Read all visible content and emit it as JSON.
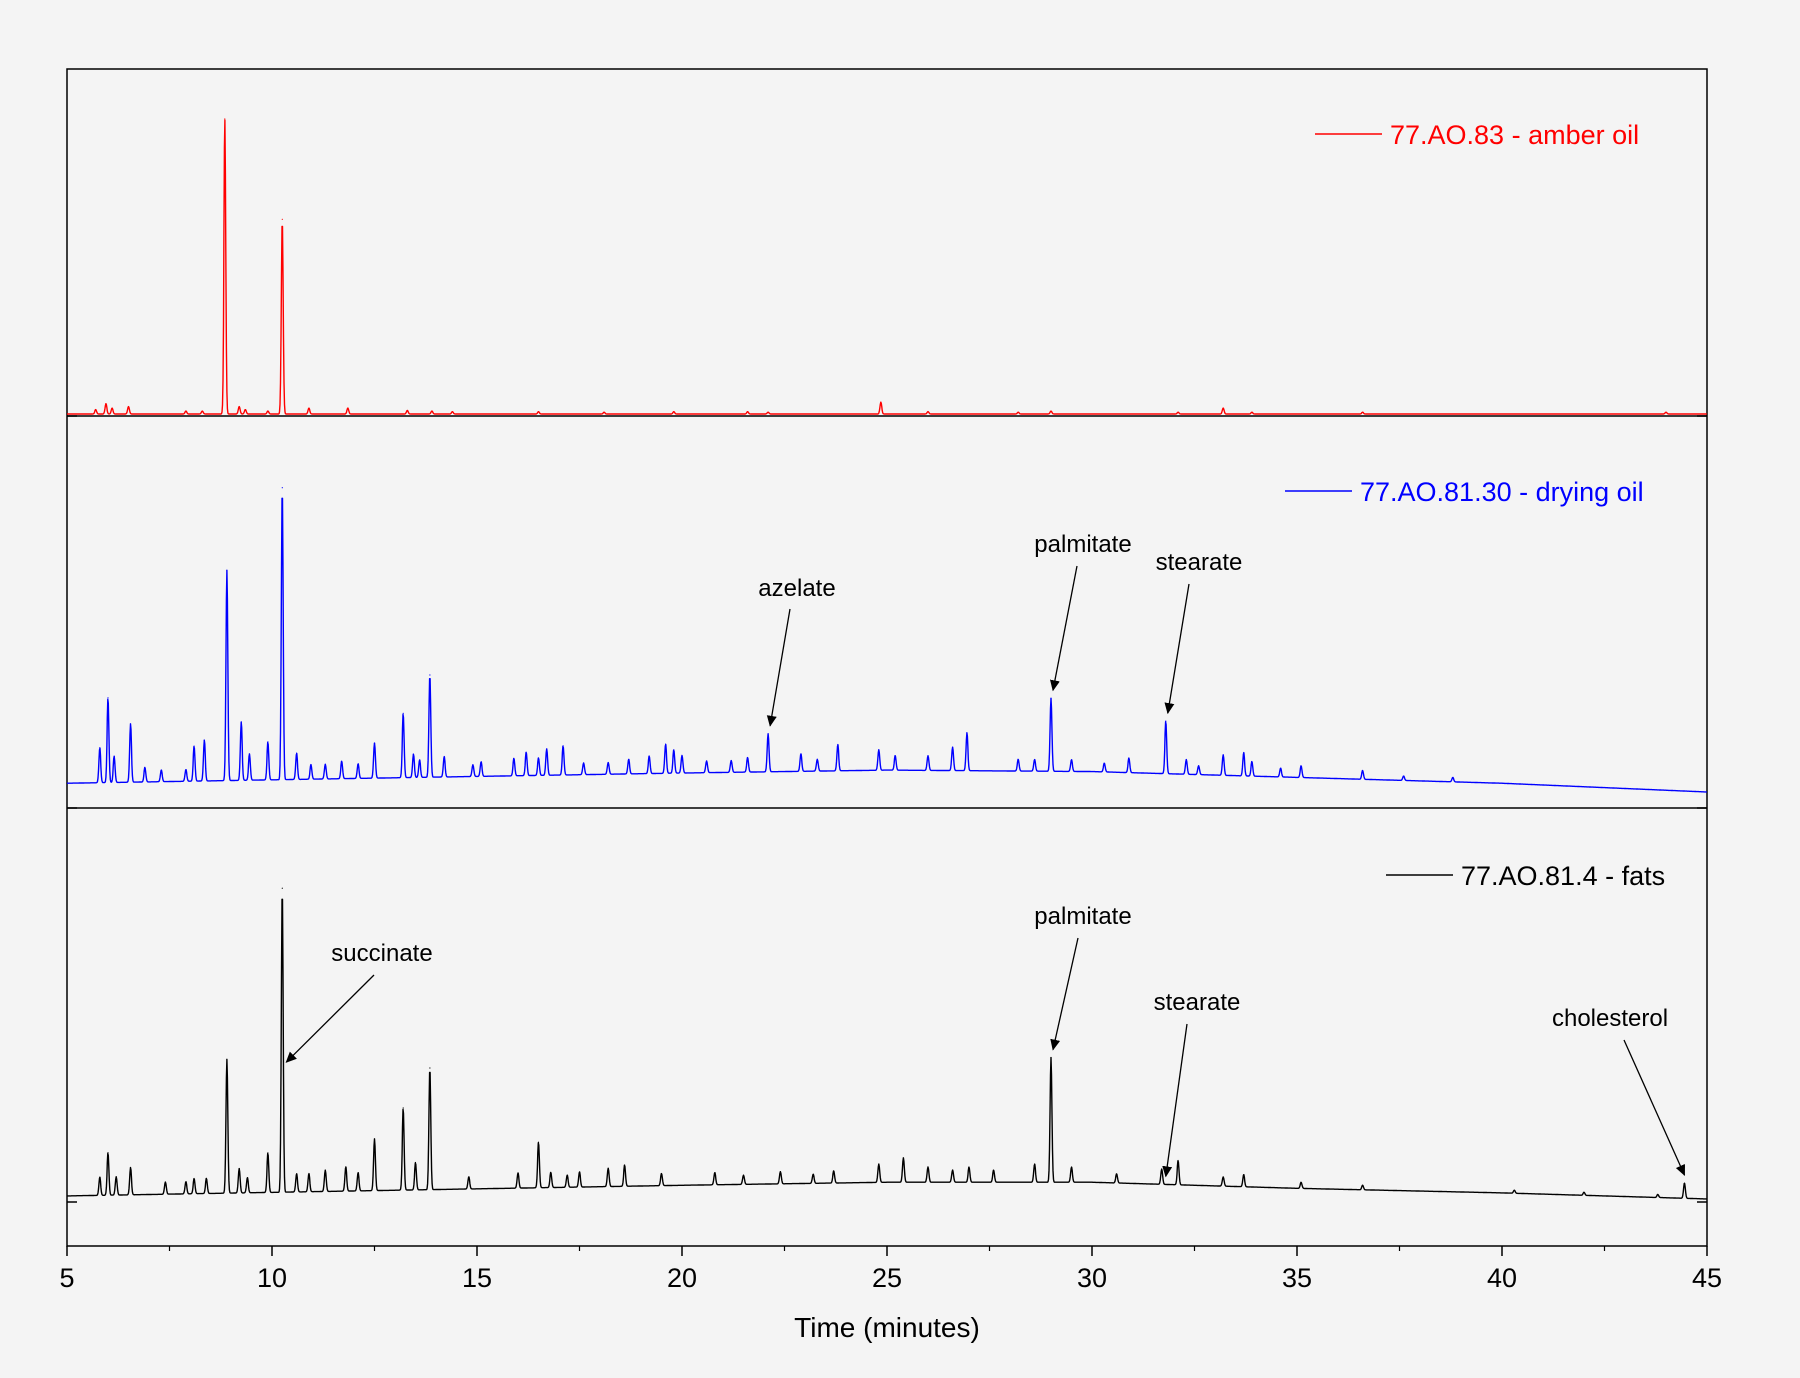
{
  "chart_data": {
    "type": "line",
    "title": "",
    "xlabel": "Time (minutes)",
    "ylabel": "",
    "xlim": [
      5,
      45
    ],
    "xticks": [
      "5",
      "10",
      "15",
      "20",
      "25",
      "30",
      "35",
      "40",
      "45"
    ],
    "grid": false,
    "legend_placement": "top-right of each panel",
    "series": [
      {
        "name": "77.AO.83 - amber oil",
        "color": "#ff0000",
        "baseline": [
          [
            5,
            0.0
          ],
          [
            25,
            0.0
          ],
          [
            45,
            0.0
          ]
        ],
        "peaks": [
          [
            5.7,
            0.015
          ],
          [
            5.95,
            0.035
          ],
          [
            6.1,
            0.02
          ],
          [
            6.5,
            0.025
          ],
          [
            7.9,
            0.01
          ],
          [
            8.3,
            0.01
          ],
          [
            8.85,
            1.0
          ],
          [
            9.2,
            0.025
          ],
          [
            9.35,
            0.015
          ],
          [
            9.9,
            0.01
          ],
          [
            10.25,
            0.66
          ],
          [
            10.9,
            0.02
          ],
          [
            11.85,
            0.02
          ],
          [
            13.3,
            0.012
          ],
          [
            13.9,
            0.01
          ],
          [
            14.4,
            0.008
          ],
          [
            16.5,
            0.008
          ],
          [
            18.1,
            0.006
          ],
          [
            19.8,
            0.008
          ],
          [
            21.6,
            0.008
          ],
          [
            22.1,
            0.006
          ],
          [
            24.85,
            0.04
          ],
          [
            26.0,
            0.008
          ],
          [
            28.2,
            0.006
          ],
          [
            29.0,
            0.01
          ],
          [
            32.1,
            0.006
          ],
          [
            33.2,
            0.02
          ],
          [
            33.9,
            0.006
          ],
          [
            36.6,
            0.006
          ],
          [
            44.0,
            0.006
          ]
        ]
      },
      {
        "name": "77.AO.81.30 - drying oil",
        "color": "#0000ff",
        "baseline": [
          [
            5,
            0.03
          ],
          [
            20,
            0.065
          ],
          [
            25,
            0.075
          ],
          [
            30,
            0.07
          ],
          [
            35,
            0.05
          ],
          [
            40,
            0.03
          ],
          [
            45,
            0.0
          ]
        ],
        "peaks": [
          [
            5.8,
            0.12
          ],
          [
            6.0,
            0.29
          ],
          [
            6.15,
            0.09
          ],
          [
            6.55,
            0.2
          ],
          [
            6.9,
            0.05
          ],
          [
            7.3,
            0.04
          ],
          [
            7.9,
            0.04
          ],
          [
            8.1,
            0.12
          ],
          [
            8.35,
            0.14
          ],
          [
            8.9,
            0.72
          ],
          [
            9.25,
            0.2
          ],
          [
            9.45,
            0.09
          ],
          [
            9.9,
            0.13
          ],
          [
            10.25,
            1.0
          ],
          [
            10.6,
            0.09
          ],
          [
            10.95,
            0.05
          ],
          [
            11.3,
            0.05
          ],
          [
            11.7,
            0.06
          ],
          [
            12.1,
            0.05
          ],
          [
            12.5,
            0.12
          ],
          [
            13.2,
            0.22
          ],
          [
            13.45,
            0.08
          ],
          [
            13.6,
            0.06
          ],
          [
            13.85,
            0.35
          ],
          [
            14.2,
            0.07
          ],
          [
            14.9,
            0.04
          ],
          [
            15.1,
            0.05
          ],
          [
            15.9,
            0.06
          ],
          [
            16.2,
            0.08
          ],
          [
            16.5,
            0.06
          ],
          [
            16.7,
            0.09
          ],
          [
            17.1,
            0.1
          ],
          [
            17.6,
            0.04
          ],
          [
            18.2,
            0.04
          ],
          [
            18.7,
            0.05
          ],
          [
            19.2,
            0.06
          ],
          [
            19.6,
            0.1
          ],
          [
            19.8,
            0.08
          ],
          [
            20.0,
            0.06
          ],
          [
            20.6,
            0.04
          ],
          [
            21.2,
            0.04
          ],
          [
            21.6,
            0.05
          ],
          [
            22.1,
            0.13
          ],
          [
            22.9,
            0.06
          ],
          [
            23.3,
            0.04
          ],
          [
            23.8,
            0.09
          ],
          [
            24.8,
            0.07
          ],
          [
            25.2,
            0.05
          ],
          [
            26.0,
            0.05
          ],
          [
            26.6,
            0.08
          ],
          [
            26.95,
            0.13
          ],
          [
            28.2,
            0.04
          ],
          [
            28.6,
            0.04
          ],
          [
            29.0,
            0.25
          ],
          [
            29.5,
            0.04
          ],
          [
            30.3,
            0.03
          ],
          [
            30.9,
            0.05
          ],
          [
            31.8,
            0.18
          ],
          [
            32.3,
            0.05
          ],
          [
            32.6,
            0.03
          ],
          [
            33.2,
            0.07
          ],
          [
            33.7,
            0.08
          ],
          [
            33.9,
            0.05
          ],
          [
            34.6,
            0.03
          ],
          [
            35.1,
            0.04
          ],
          [
            36.6,
            0.03
          ],
          [
            37.6,
            0.015
          ],
          [
            38.8,
            0.015
          ]
        ]
      },
      {
        "name": "77.AO.81.4 - fats",
        "color": "#000000",
        "baseline": [
          [
            5,
            0.02
          ],
          [
            20,
            0.055
          ],
          [
            25,
            0.065
          ],
          [
            30,
            0.065
          ],
          [
            35,
            0.045
          ],
          [
            40,
            0.03
          ],
          [
            45,
            0.01
          ]
        ],
        "peaks": [
          [
            5.8,
            0.06
          ],
          [
            6.0,
            0.14
          ],
          [
            6.2,
            0.06
          ],
          [
            6.55,
            0.09
          ],
          [
            7.4,
            0.04
          ],
          [
            7.9,
            0.04
          ],
          [
            8.1,
            0.05
          ],
          [
            8.4,
            0.05
          ],
          [
            8.9,
            0.44
          ],
          [
            9.2,
            0.08
          ],
          [
            9.4,
            0.05
          ],
          [
            9.9,
            0.13
          ],
          [
            10.25,
            1.0
          ],
          [
            10.6,
            0.06
          ],
          [
            10.9,
            0.06
          ],
          [
            11.3,
            0.07
          ],
          [
            11.8,
            0.08
          ],
          [
            12.1,
            0.06
          ],
          [
            12.5,
            0.17
          ],
          [
            13.2,
            0.27
          ],
          [
            13.5,
            0.09
          ],
          [
            13.85,
            0.4
          ],
          [
            14.8,
            0.04
          ],
          [
            16.0,
            0.05
          ],
          [
            16.5,
            0.15
          ],
          [
            16.8,
            0.05
          ],
          [
            17.2,
            0.04
          ],
          [
            17.5,
            0.05
          ],
          [
            18.2,
            0.06
          ],
          [
            18.6,
            0.07
          ],
          [
            19.5,
            0.04
          ],
          [
            20.8,
            0.04
          ],
          [
            21.5,
            0.03
          ],
          [
            22.4,
            0.04
          ],
          [
            23.2,
            0.03
          ],
          [
            23.7,
            0.04
          ],
          [
            24.8,
            0.06
          ],
          [
            25.4,
            0.08
          ],
          [
            26.0,
            0.05
          ],
          [
            26.6,
            0.04
          ],
          [
            27.0,
            0.05
          ],
          [
            27.6,
            0.04
          ],
          [
            28.6,
            0.06
          ],
          [
            29.0,
            0.41
          ],
          [
            29.5,
            0.05
          ],
          [
            30.6,
            0.03
          ],
          [
            31.7,
            0.05
          ],
          [
            32.1,
            0.08
          ],
          [
            33.2,
            0.03
          ],
          [
            33.7,
            0.04
          ],
          [
            35.1,
            0.02
          ],
          [
            36.6,
            0.015
          ],
          [
            40.3,
            0.01
          ],
          [
            42.0,
            0.01
          ],
          [
            43.8,
            0.01
          ],
          [
            44.45,
            0.05
          ]
        ]
      }
    ],
    "annotations": [
      {
        "text": "azelate",
        "series": 1,
        "x": 22.1
      },
      {
        "text": "palmitate",
        "series": 1,
        "x": 29.0
      },
      {
        "text": "stearate",
        "series": 1,
        "x": 31.8
      },
      {
        "text": "succinate",
        "series": 2,
        "x": 10.25
      },
      {
        "text": "palmitate",
        "series": 2,
        "x": 29.0
      },
      {
        "text": "stearate",
        "series": 2,
        "x": 31.75
      },
      {
        "text": "cholesterol",
        "series": 2,
        "x": 44.45
      }
    ]
  }
}
